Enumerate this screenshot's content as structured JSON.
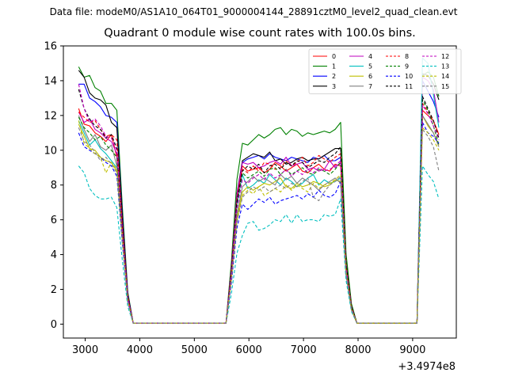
{
  "chart_data": {
    "type": "line",
    "suptitle": "Data file: modeM0/AS1A10_064T01_9000004144_28891cztM0_level2_quad_clean.evt",
    "title": "Quadrant 0 module wise count rates with 100.0s bins.",
    "xlabel": "",
    "ylabel": "",
    "offset_label": "+3.4974e8",
    "xlim": [
      2600,
      9800
    ],
    "ylim": [
      -0.8,
      16
    ],
    "xticks": [
      "3000",
      "4000",
      "5000",
      "6000",
      "7000",
      "8000",
      "9000"
    ],
    "xtick_values": [
      3000,
      4000,
      5000,
      6000,
      7000,
      8000,
      9000
    ],
    "yticks": [
      "0",
      "2",
      "4",
      "6",
      "8",
      "10",
      "12",
      "14",
      "16"
    ],
    "ytick_values": [
      0,
      2,
      4,
      6,
      8,
      10,
      12,
      14,
      16
    ],
    "x": [
      2880,
      2980,
      3080,
      3180,
      3280,
      3380,
      3480,
      3580,
      3680,
      3780,
      3880,
      3980,
      4080,
      4180,
      4280,
      4380,
      4480,
      4580,
      4680,
      4780,
      4880,
      4980,
      5080,
      5180,
      5280,
      5380,
      5480,
      5580,
      5680,
      5780,
      5880,
      5980,
      6080,
      6180,
      6280,
      6380,
      6480,
      6580,
      6680,
      6780,
      6880,
      6980,
      7080,
      7180,
      7280,
      7380,
      7480,
      7580,
      7680,
      7780,
      7880,
      7980,
      8080,
      8180,
      8280,
      8380,
      8480,
      8580,
      8680,
      8780,
      8880,
      8980,
      9080,
      9180,
      9280,
      9380,
      9480
    ],
    "segments": [
      {
        "start": 0,
        "plateau": 7,
        "drop_end": 10,
        "base": 0.05
      },
      {
        "start": 27,
        "rise": 30,
        "plateau_end": 48,
        "drop_end": 51,
        "base": 0.05
      },
      {
        "start": 62,
        "rise": 63
      }
    ],
    "series": [
      {
        "name": "0",
        "color": "#ff0000",
        "dashed": false,
        "values_first": [
          12.4,
          11.5,
          11.4,
          11.0,
          10.8,
          10.5,
          10.9,
          9.6
        ],
        "values_mid": [
          9.1,
          8.8,
          8.9,
          9.0,
          8.7,
          8.9,
          9.3,
          9.1,
          8.8,
          9.0,
          9.2,
          8.8,
          8.7,
          9.0,
          9.2,
          8.9,
          8.8,
          9.2,
          9.1
        ],
        "values_last": [
          13.4,
          12.3,
          12.0,
          11.7,
          10.9
        ]
      },
      {
        "name": "1",
        "color": "#008000",
        "dashed": false,
        "values_first": [
          14.8,
          14.2,
          14.3,
          13.6,
          13.4,
          12.7,
          12.7,
          12.3
        ],
        "values_mid": [
          10.4,
          10.3,
          10.6,
          10.9,
          10.7,
          10.9,
          11.2,
          11.3,
          10.9,
          11.2,
          11.1,
          10.8,
          11.0,
          10.9,
          11.0,
          11.1,
          11.0,
          11.2,
          11.6
        ],
        "values_last": [
          14.2,
          14.3,
          14.5,
          14.2,
          13.1
        ]
      },
      {
        "name": "2",
        "color": "#0000ff",
        "dashed": false,
        "values_first": [
          13.8,
          13.8,
          13.0,
          12.8,
          12.5,
          12.0,
          11.9,
          11.6
        ],
        "values_mid": [
          9.3,
          9.5,
          9.6,
          9.7,
          9.5,
          9.8,
          9.6,
          9.5,
          9.4,
          9.6,
          9.5,
          9.4,
          9.3,
          9.6,
          9.5,
          9.7,
          9.4,
          9.4,
          9.6
        ],
        "values_last": [
          13.9,
          14.0,
          13.4,
          12.8,
          11.9
        ]
      },
      {
        "name": "3",
        "color": "#000000",
        "dashed": false,
        "values_first": [
          14.6,
          14.2,
          13.3,
          13.0,
          12.9,
          12.6,
          11.6,
          11.3
        ],
        "values_mid": [
          9.4,
          9.6,
          9.8,
          9.7,
          9.6,
          9.9,
          9.4,
          9.5,
          9.2,
          9.3,
          9.5,
          9.6,
          9.4,
          9.5,
          9.5,
          9.7,
          9.9,
          10.1,
          10.1
        ],
        "values_last": [
          14.3,
          14.4,
          14.3,
          13.8,
          12.9
        ]
      },
      {
        "name": "4",
        "color": "#bf00bf",
        "dashed": false,
        "values_first": [
          12.2,
          11.6,
          11.8,
          11.2,
          11.0,
          10.7,
          10.5,
          9.8
        ],
        "values_mid": [
          9.3,
          9.2,
          9.3,
          9.0,
          9.1,
          9.3,
          9.4,
          9.2,
          9.6,
          9.1,
          9.2,
          9.3,
          8.9,
          9.0,
          8.8,
          8.9,
          9.4,
          9.0,
          9.3
        ],
        "values_last": [
          13.6,
          14.2,
          14.0,
          13.5,
          11.6
        ]
      },
      {
        "name": "5",
        "color": "#00bfbf",
        "dashed": false,
        "values_first": [
          11.7,
          11.0,
          10.3,
          10.6,
          10.1,
          9.8,
          9.4,
          9.0
        ],
        "values_mid": [
          8.6,
          7.8,
          8.0,
          8.3,
          8.1,
          8.6,
          8.3,
          8.0,
          8.4,
          8.2,
          7.9,
          8.1,
          8.4,
          8.6,
          8.0,
          8.3,
          8.1,
          8.2,
          8.4
        ],
        "values_last": [
          13.8,
          15.3,
          15.0,
          13.2,
          11.3
        ]
      },
      {
        "name": "6",
        "color": "#bfbf00",
        "dashed": false,
        "values_first": [
          11.5,
          10.8,
          10.1,
          10.0,
          9.6,
          9.4,
          9.3,
          8.8
        ],
        "values_mid": [
          7.6,
          7.9,
          7.7,
          7.9,
          8.1,
          8.0,
          8.2,
          8.4,
          7.9,
          7.8,
          8.1,
          7.9,
          8.0,
          8.2,
          8.1,
          7.9,
          8.0,
          8.3,
          8.2
        ],
        "values_last": [
          12.8,
          12.0,
          11.4,
          11.0,
          10.3
        ]
      },
      {
        "name": "7",
        "color": "#808080",
        "dashed": false,
        "values_first": [
          12.0,
          11.2,
          10.5,
          10.9,
          10.2,
          10.0,
          10.3,
          9.1
        ],
        "values_mid": [
          7.9,
          8.2,
          8.5,
          8.2,
          8.4,
          8.2,
          8.0,
          8.6,
          8.3,
          8.5,
          8.1,
          8.4,
          8.2,
          8.0,
          7.7,
          8.0,
          8.2,
          8.4,
          8.1
        ],
        "values_last": [
          13.0,
          12.0,
          11.5,
          11.0,
          10.2
        ]
      },
      {
        "name": "8",
        "color": "#ff0000",
        "dashed": true,
        "values_first": [
          12.2,
          11.9,
          11.6,
          11.7,
          11.2,
          10.8,
          10.9,
          10.6
        ],
        "values_mid": [
          8.9,
          8.7,
          9.1,
          8.8,
          9.3,
          9.2,
          8.9,
          9.0,
          9.4,
          9.1,
          9.3,
          9.6,
          9.1,
          9.3,
          9.7,
          9.5,
          9.3,
          9.6,
          9.8
        ],
        "values_last": [
          13.0,
          12.7,
          12.2,
          11.7,
          10.9
        ]
      },
      {
        "name": "9",
        "color": "#008000",
        "dashed": true,
        "values_first": [
          11.9,
          11.3,
          11.0,
          10.6,
          10.8,
          10.3,
          10.0,
          9.6
        ],
        "values_mid": [
          8.7,
          8.4,
          8.6,
          8.8,
          8.5,
          8.9,
          9.0,
          8.6,
          8.9,
          8.6,
          8.8,
          9.0,
          8.7,
          8.6,
          8.9,
          8.8,
          8.6,
          8.9,
          9.3
        ],
        "values_last": [
          13.6,
          12.9,
          12.3,
          11.4,
          10.3
        ]
      },
      {
        "name": "10",
        "color": "#0000ff",
        "dashed": true,
        "values_first": [
          11.0,
          10.2,
          10.0,
          9.8,
          9.6,
          9.3,
          9.1,
          8.5
        ],
        "values_mid": [
          6.9,
          6.6,
          6.9,
          7.2,
          7.0,
          7.3,
          6.9,
          7.1,
          7.2,
          7.3,
          7.4,
          7.2,
          7.5,
          7.3,
          7.7,
          7.4,
          7.3,
          7.5,
          8.2
        ],
        "values_last": [
          12.2,
          11.6,
          11.0,
          10.8,
          10.4
        ]
      },
      {
        "name": "11",
        "color": "#000000",
        "dashed": true,
        "values_first": [
          13.5,
          12.4,
          11.8,
          11.4,
          11.2,
          10.7,
          10.9,
          10.1
        ],
        "values_mid": [
          8.8,
          9.1,
          8.9,
          9.2,
          8.7,
          9.1,
          9.2,
          8.9,
          9.3,
          9.1,
          9.4,
          9.3,
          9.0,
          9.2,
          9.4,
          9.3,
          9.6,
          9.8,
          10.2
        ],
        "values_last": [
          14.0,
          13.1,
          12.4,
          11.7,
          10.7
        ]
      },
      {
        "name": "12",
        "color": "#bf00bf",
        "dashed": true,
        "values_first": [
          13.8,
          12.4,
          11.6,
          11.8,
          11.4,
          10.8,
          10.7,
          10.0
        ],
        "values_mid": [
          8.3,
          8.1,
          8.4,
          8.6,
          8.3,
          8.7,
          8.4,
          8.6,
          8.9,
          8.5,
          8.8,
          8.6,
          8.9,
          8.7,
          9.0,
          8.8,
          8.9,
          9.1,
          9.4
        ],
        "values_last": [
          13.4,
          12.6,
          12.1,
          11.4,
          10.6
        ]
      },
      {
        "name": "13",
        "color": "#00bfbf",
        "dashed": true,
        "values_first": [
          9.1,
          8.7,
          7.8,
          7.4,
          7.2,
          7.2,
          7.3,
          6.7
        ],
        "values_mid": [
          5.1,
          5.8,
          5.9,
          5.4,
          5.5,
          5.7,
          6.0,
          5.9,
          6.3,
          5.8,
          6.3,
          5.9,
          6.0,
          6.0,
          5.9,
          6.3,
          6.2,
          6.3,
          7.2
        ],
        "values_last": [
          8.3,
          9.1,
          8.6,
          8.2,
          7.2
        ]
      },
      {
        "name": "14",
        "color": "#bfbf00",
        "dashed": true,
        "values_first": [
          11.7,
          10.4,
          10.1,
          9.8,
          9.6,
          8.7,
          9.3,
          8.9
        ],
        "values_mid": [
          7.4,
          7.7,
          7.5,
          7.9,
          7.4,
          7.6,
          7.8,
          7.6,
          8.0,
          7.7,
          8.0,
          7.8,
          7.6,
          8.1,
          7.8,
          8.0,
          8.1,
          8.3,
          8.6
        ],
        "values_last": [
          12.5,
          11.3,
          11.0,
          10.6,
          10.0
        ]
      },
      {
        "name": "15",
        "color": "#808080",
        "dashed": true,
        "values_first": [
          11.3,
          10.5,
          10.3,
          9.9,
          9.4,
          9.6,
          9.2,
          8.7
        ],
        "values_mid": [
          7.3,
          7.6,
          7.9,
          7.7,
          7.9,
          7.6,
          7.8,
          8.0,
          7.8,
          8.1,
          7.9,
          8.2,
          8.4,
          7.3,
          7.1,
          7.6,
          8.0,
          8.2,
          8.5
        ],
        "values_last": [
          12.9,
          11.2,
          10.8,
          10.2,
          8.8
        ]
      }
    ],
    "legend_location": "top-right",
    "legend_columns": 4,
    "grid": false
  }
}
